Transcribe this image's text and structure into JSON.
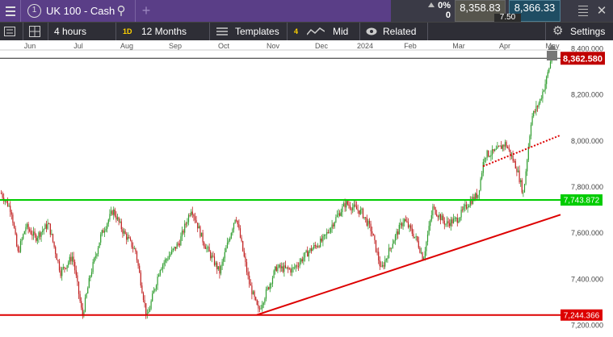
{
  "header": {
    "title": "UK 100 - Cash",
    "change_pct": "0%",
    "change_abs": "0",
    "sell_price": "8,358.83",
    "buy_price": "8,366.33",
    "spread": "7.50"
  },
  "toolbar": {
    "interval": "4 hours",
    "range_badge": "1D",
    "range": "12 Months",
    "templates": "Templates",
    "indicators_count": "4",
    "price_mode": "Mid",
    "related": "Related",
    "settings": "Settings"
  },
  "chart_data": {
    "type": "candlestick",
    "x_labels": [
      "Jun",
      "Jul",
      "Aug",
      "Sep",
      "Oct",
      "Nov",
      "Dec",
      "2024",
      "Feb",
      "Mar",
      "Apr",
      "May"
    ],
    "y_ticks": [
      "8,400.000",
      "8,200.000",
      "8,000.000",
      "7,800.000",
      "7,600.000",
      "7,400.000",
      "7,200.000"
    ],
    "ylim": [
      7170,
      8430
    ],
    "last_price_label": "8,362.580",
    "last_price": 8362.58,
    "horizontal_levels": [
      {
        "label": "7,743.872",
        "value": 7743.872,
        "color": "#00cc00"
      },
      {
        "label": "7,244.366",
        "value": 7244.366,
        "color": "#dd0000"
      }
    ],
    "trend_lines": [
      {
        "from_month": "Nov",
        "from_value": 7245,
        "to_month": "May",
        "to_value": 7680,
        "color": "#dd0000",
        "style": "solid"
      },
      {
        "from_month": "Mar",
        "from_value": 7890,
        "to_month": "May",
        "to_value": 8025,
        "color": "#dd0000",
        "style": "dotted"
      }
    ],
    "colors": {
      "up": "#2e9c2e",
      "down": "#c02020",
      "axis": "#555555"
    }
  }
}
